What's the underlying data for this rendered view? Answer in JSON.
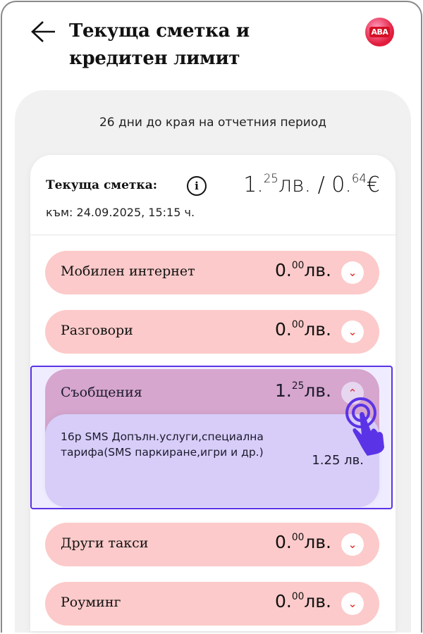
{
  "header": {
    "title_line1": "Текуща сметка и",
    "title_line2": "кредитен лимит",
    "logo_text": "ABA"
  },
  "period": "26 дни до края на отчетния период",
  "balance": {
    "label": "Текуща сметка:",
    "int": "1.",
    "dec": "25",
    "cur": "лв. / 0.",
    "eur_dec": "64",
    "eur": "€",
    "date": "към: 24.09.2025, 15:15 ч."
  },
  "rows": [
    {
      "label": "Мобилен интернет",
      "int": "0.",
      "dec": "00",
      "cur": "лв."
    },
    {
      "label": "Разговори",
      "int": "0.",
      "dec": "00",
      "cur": "лв."
    },
    {
      "label": "Съобщения",
      "int": "1.",
      "dec": "25",
      "cur": "лв.",
      "expanded": true,
      "detail": {
        "name": "16р SMS Допълн.услуги,специална тарифа(SMS паркиране,игри и др.)",
        "amount": "1.25 лв."
      }
    },
    {
      "label": "Други такси",
      "int": "0.",
      "dec": "00",
      "cur": "лв."
    },
    {
      "label": "Роуминг",
      "int": "0.",
      "dec": "00",
      "cur": "лв."
    }
  ],
  "colors": {
    "row": "#fccaca",
    "chevron": "#e0403a",
    "highlight": "#5b33e6"
  }
}
